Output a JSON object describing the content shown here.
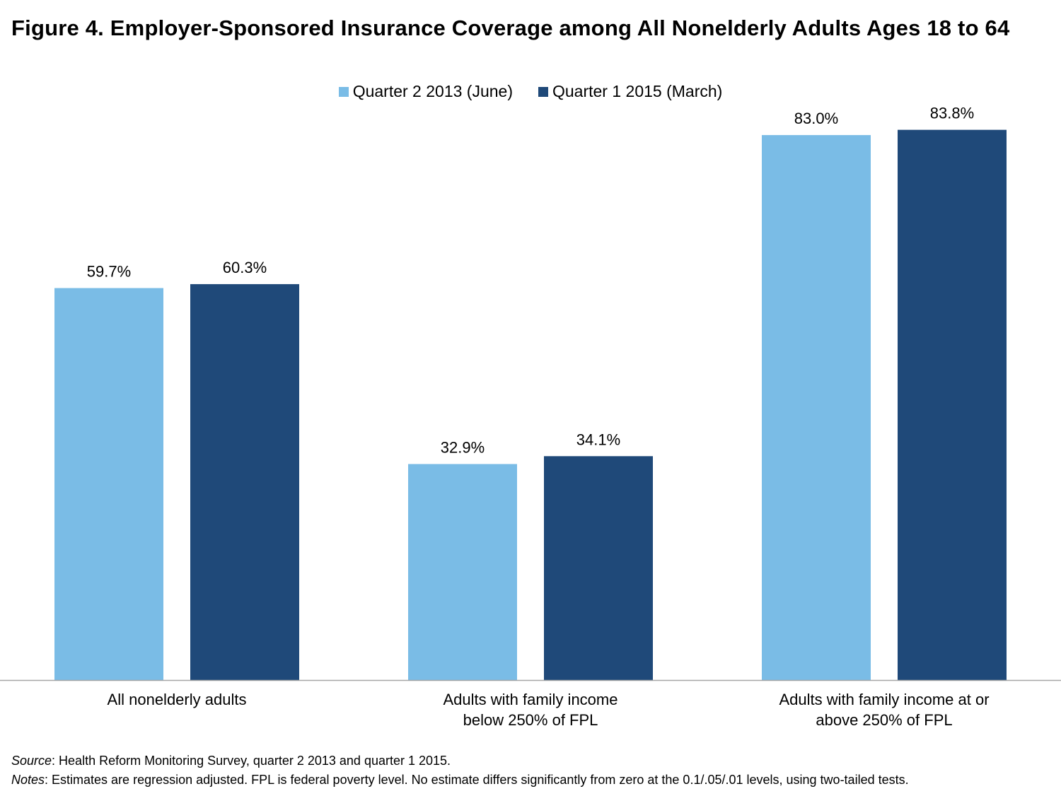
{
  "chart_data": {
    "type": "bar",
    "title": "Figure 4. Employer-Sponsored Insurance Coverage among All Nonelderly Adults Ages 18 to 64",
    "categories": [
      [
        "All nonelderly adults"
      ],
      [
        "Adults with family income",
        "below 250% of FPL"
      ],
      [
        "Adults with family income at or",
        "above 250% of FPL"
      ]
    ],
    "series": [
      {
        "name": "Quarter 2 2013 (June)",
        "color": "#7ABCE6",
        "values": [
          59.7,
          32.9,
          83.0
        ],
        "labels": [
          "59.7%",
          "32.9%",
          "83.0%"
        ]
      },
      {
        "name": "Quarter 1 2015 (March)",
        "color": "#1F4979",
        "values": [
          60.3,
          34.1,
          83.8
        ],
        "labels": [
          "60.3%",
          "34.1%",
          "83.8%"
        ]
      }
    ],
    "ylim": [
      0,
      100
    ],
    "grid": false,
    "legend_position": "top-center",
    "axis_color": "#A6A6A6"
  },
  "footer": {
    "source_lead": "Source",
    "source_text": ": Health Reform Monitoring Survey, quarter 2 2013 and quarter 1 2015.",
    "notes_lead": "Notes",
    "notes_text": ": Estimates are regression adjusted. FPL is federal poverty level. No estimate differs significantly from zero at the 0.1/.05/.01 levels, using two-tailed tests."
  }
}
